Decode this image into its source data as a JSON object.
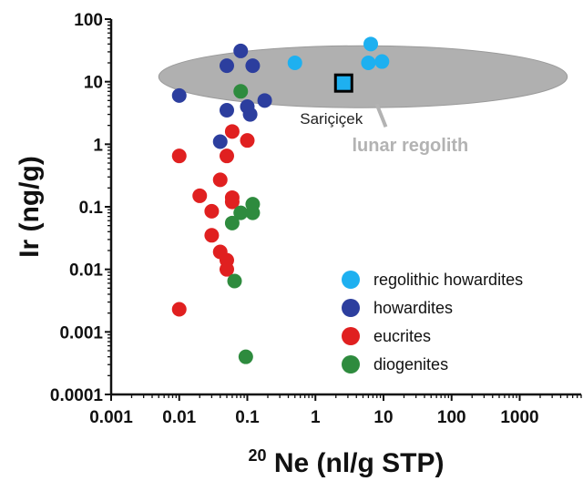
{
  "chart_data": {
    "type": "scatter",
    "xlabel_sup": "20",
    "xlabel": "Ne (nl/g  STP)",
    "ylabel": "Ir (ng/g)",
    "x_scale": "log",
    "y_scale": "log",
    "xlim": [
      0.001,
      8000
    ],
    "ylim": [
      0.0001,
      100
    ],
    "x_ticks": [
      {
        "value": 0.001,
        "label": "0.001"
      },
      {
        "value": 0.01,
        "label": "0.01"
      },
      {
        "value": 0.1,
        "label": "0.1"
      },
      {
        "value": 1,
        "label": "1"
      },
      {
        "value": 10,
        "label": "10"
      },
      {
        "value": 100,
        "label": "100"
      },
      {
        "value": 1000,
        "label": "1000"
      }
    ],
    "y_ticks": [
      {
        "value": 100,
        "label": "100"
      },
      {
        "value": 10,
        "label": "10"
      },
      {
        "value": 1,
        "label": "1"
      },
      {
        "value": 0.1,
        "label": "0.1"
      },
      {
        "value": 0.01,
        "label": "0.01"
      },
      {
        "value": 0.001,
        "label": "0.001"
      },
      {
        "value": 0.0001,
        "label": "0.0001"
      }
    ],
    "grid": false,
    "legend_position": "bottom-right",
    "series": [
      {
        "name": "regolithic howardites",
        "color": "#1eb0f0",
        "points": [
          [
            0.5,
            20
          ],
          [
            6.5,
            40
          ],
          [
            6,
            20
          ],
          [
            9.5,
            21
          ]
        ]
      },
      {
        "name": "howardites",
        "color": "#2c3e9e",
        "points": [
          [
            0.01,
            6
          ],
          [
            0.05,
            18
          ],
          [
            0.08,
            31
          ],
          [
            0.12,
            18
          ],
          [
            0.18,
            5
          ],
          [
            0.05,
            3.5
          ],
          [
            0.1,
            4
          ],
          [
            0.11,
            3
          ],
          [
            0.04,
            1.1
          ]
        ]
      },
      {
        "name": "eucrites",
        "color": "#e02020",
        "points": [
          [
            0.01,
            0.65
          ],
          [
            0.06,
            1.6
          ],
          [
            0.1,
            1.15
          ],
          [
            0.05,
            0.65
          ],
          [
            0.04,
            0.27
          ],
          [
            0.02,
            0.15
          ],
          [
            0.06,
            0.14
          ],
          [
            0.06,
            0.12
          ],
          [
            0.03,
            0.085
          ],
          [
            0.03,
            0.035
          ],
          [
            0.04,
            0.019
          ],
          [
            0.05,
            0.014
          ],
          [
            0.05,
            0.01
          ],
          [
            0.01,
            0.0023
          ]
        ]
      },
      {
        "name": "diogenites",
        "color": "#2e8b3e",
        "points": [
          [
            0.08,
            7
          ],
          [
            0.12,
            0.11
          ],
          [
            0.08,
            0.08
          ],
          [
            0.12,
            0.08
          ],
          [
            0.06,
            0.055
          ],
          [
            0.065,
            0.0065
          ],
          [
            0.095,
            0.0004
          ]
        ]
      }
    ],
    "annotations": {
      "lunar_regolith": {
        "label": "lunar regolith",
        "color": "#b0b0b0",
        "x_range": [
          0.005,
          5000
        ],
        "y_center": 12
      },
      "saricicek": {
        "label": "Sariçiçek",
        "color": "#1eb0f0",
        "x": 2.6,
        "y": 9.5
      }
    }
  }
}
